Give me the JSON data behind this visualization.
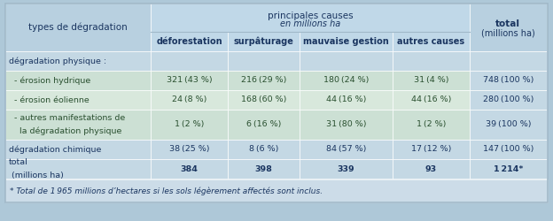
{
  "outer_bg": "#aec8d8",
  "header_bg": "#b8d0e0",
  "subheader_bg": "#c0d8e8",
  "data_green_light": "#cce0d4",
  "data_green_mid": "#d8e8dc",
  "data_blue_stripe": "#c4d8e4",
  "footer_bg": "#ccdce8",
  "border_color": "#a0b8c8",
  "header_text": "#1a3560",
  "data_text": "#2a5030",
  "col_header_1": "types de dégradation",
  "col_header_group": "principales causes en millions ha",
  "col_header_total": "total\n(millions ha)",
  "sub_headers": [
    "déforestation",
    "surpâturage",
    "mauvaise gestion",
    "autres causes"
  ],
  "rows": [
    {
      "label": "dégradation physique :",
      "label_bold": false,
      "label_part2": "",
      "values": [
        "",
        "",
        "",
        ""
      ],
      "total": "",
      "row_bg": "blue"
    },
    {
      "label": "  - érosion hydrique",
      "label_bold": false,
      "label_part2": "",
      "values": [
        "321 (43 %)",
        "216 (29 %)",
        "180 (24 %)",
        "31 (4 %)"
      ],
      "total": "748 (100 %)",
      "row_bg": "green_light"
    },
    {
      "label": "  - érosion éolienne",
      "label_bold": false,
      "label_part2": "",
      "values": [
        "24 (8 %)",
        "168 (60 %)",
        "44 (16 %)",
        "44 (16 %)"
      ],
      "total": "280 (100 %)",
      "row_bg": "green_mid"
    },
    {
      "label": "  - autres manifestations de",
      "label_bold": false,
      "label_part2": "    la dégradation physique",
      "values": [
        "1 (2 %)",
        "6 (16 %)",
        "31 (80 %)",
        "1 (2 %)"
      ],
      "total": "39 (100 %)",
      "row_bg": "green_light"
    },
    {
      "label": "dégradation chimique",
      "label_bold": false,
      "label_part2": "",
      "values": [
        "38 (25 %)",
        "8 (6 %)",
        "84 (57 %)",
        "17 (12 %)"
      ],
      "total": "147 (100 %)",
      "row_bg": "blue"
    },
    {
      "label": "total",
      "label_bold": true,
      "label_part2": " (millions ha)",
      "values": [
        "384",
        "398",
        "339",
        "93"
      ],
      "total": "1 214*",
      "row_bg": "blue"
    }
  ],
  "footnote": "* Total de 1 965 millions d’hectares si les sols légèrement affectés sont inclus.",
  "col_ratios": [
    0.268,
    0.142,
    0.132,
    0.172,
    0.142,
    0.142
  ]
}
